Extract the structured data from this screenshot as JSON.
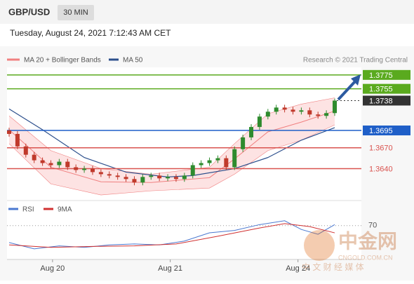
{
  "chart_data": {
    "type": "candlestick",
    "symbol": "GBP/USD",
    "timeframe": "30 MIN",
    "datetime": "Tuesday, August 24, 2021 7:12:43 AM CET",
    "copyright": "Research © 2021 Trading Central",
    "watermark": {
      "logo": "中金网",
      "site": "CNGOLD.COM.CN",
      "tagline": "中 文 财 经 媒 体"
    },
    "ylim": [
      1.3595,
      1.379
    ],
    "xlim": [
      -0.5,
      39.5
    ],
    "xticks": [
      {
        "value": 5.2,
        "label": "Aug 20"
      },
      {
        "value": 19.3,
        "label": "Aug 21"
      },
      {
        "value": 34.6,
        "label": "Aug 24"
      }
    ],
    "up_color": "#2e8b2e",
    "down_color": "#c0392b",
    "open": [
      1.3695,
      1.369,
      1.3672,
      1.366,
      1.3652,
      1.3648,
      1.3645,
      1.365,
      1.3642,
      1.3638,
      1.364,
      1.3635,
      1.3632,
      1.363,
      1.3628,
      1.3625,
      1.362,
      1.3628,
      1.363,
      1.3626,
      1.3628,
      1.3625,
      1.363,
      1.3645,
      1.3648,
      1.3652,
      1.3655,
      1.3642,
      1.3668,
      1.3685,
      1.37,
      1.3715,
      1.3722,
      1.3728,
      1.3725,
      1.3722,
      1.3724,
      1.3718,
      1.3716,
      1.372
    ],
    "high": [
      1.3699,
      1.3694,
      1.3676,
      1.3664,
      1.3656,
      1.3652,
      1.3654,
      1.3654,
      1.3646,
      1.3644,
      1.3644,
      1.3639,
      1.3636,
      1.3634,
      1.3632,
      1.3629,
      1.3632,
      1.3634,
      1.3634,
      1.3632,
      1.3632,
      1.3634,
      1.3649,
      1.3652,
      1.3656,
      1.3659,
      1.3659,
      1.3672,
      1.3689,
      1.3704,
      1.3719,
      1.3726,
      1.3732,
      1.3732,
      1.3729,
      1.3728,
      1.3728,
      1.3722,
      1.3724,
      1.3741
    ],
    "low": [
      1.3686,
      1.3668,
      1.3656,
      1.3648,
      1.3644,
      1.3641,
      1.3641,
      1.3638,
      1.3634,
      1.3634,
      1.3631,
      1.3628,
      1.3626,
      1.3624,
      1.3621,
      1.3616,
      1.3616,
      1.3624,
      1.3622,
      1.3622,
      1.3621,
      1.3621,
      1.3626,
      1.3641,
      1.3644,
      1.3648,
      1.3638,
      1.3638,
      1.3664,
      1.3681,
      1.3696,
      1.3711,
      1.3718,
      1.3721,
      1.3718,
      1.3718,
      1.3714,
      1.3712,
      1.3712,
      1.3716
    ],
    "close": [
      1.369,
      1.3672,
      1.366,
      1.3652,
      1.3648,
      1.3645,
      1.365,
      1.3642,
      1.3638,
      1.364,
      1.3635,
      1.3632,
      1.363,
      1.3628,
      1.3625,
      1.362,
      1.3628,
      1.363,
      1.3626,
      1.3628,
      1.3625,
      1.363,
      1.3645,
      1.3648,
      1.3652,
      1.3655,
      1.3642,
      1.3668,
      1.3685,
      1.37,
      1.3715,
      1.3722,
      1.3728,
      1.3725,
      1.3722,
      1.3724,
      1.3718,
      1.3716,
      1.372,
      1.3738
    ],
    "bands": {
      "name": "MA 20 + Bollinger Bands",
      "color": "#f08080",
      "fill": "#fde3e3",
      "x": [
        0,
        5,
        11,
        17,
        24,
        27,
        31,
        35,
        39
      ],
      "upper": [
        1.3716,
        1.3666,
        1.364,
        1.3632,
        1.3642,
        1.3676,
        1.3719,
        1.3733,
        1.3742
      ],
      "middle": [
        1.3696,
        1.3642,
        1.3621,
        1.362,
        1.3627,
        1.3654,
        1.3693,
        1.3707,
        1.3723
      ],
      "lower": [
        1.3676,
        1.3618,
        1.3602,
        1.3608,
        1.3612,
        1.3632,
        1.3666,
        1.3681,
        1.3703
      ]
    },
    "ma50": {
      "name": "MA 50",
      "color": "#2c4f8c",
      "x": [
        0,
        4,
        9,
        14,
        19,
        22,
        27,
        31,
        35,
        39
      ],
      "values": [
        1.3726,
        1.3696,
        1.3656,
        1.3635,
        1.3628,
        1.363,
        1.364,
        1.3656,
        1.3681,
        1.3699
      ]
    },
    "levels": [
      {
        "value": 1.3775,
        "label": "1.3775",
        "color": "#5aaa1e",
        "line": "solid",
        "box": true
      },
      {
        "value": 1.3755,
        "label": "1.3755",
        "color": "#5aaa1e",
        "line": "solid",
        "box": true
      },
      {
        "value": 1.3738,
        "label": "1.3738",
        "color": "#333333",
        "line": "dotted",
        "box": true
      },
      {
        "value": 1.3695,
        "label": "1.3695",
        "color": "#1f5fc8",
        "line": "solid",
        "box": true
      },
      {
        "value": 1.367,
        "label": "1.3670",
        "color": "#d9534f",
        "line": "solid",
        "box": false
      },
      {
        "value": 1.364,
        "label": "1.3640",
        "color": "#d9534f",
        "line": "solid",
        "box": false
      }
    ],
    "rsi_panel": {
      "ylim": [
        0,
        100
      ],
      "yticks": [
        70
      ],
      "series": [
        {
          "name": "RSI",
          "color": "#4a78d0",
          "x": [
            0,
            3,
            6,
            9,
            12,
            15,
            18,
            21,
            24,
            27,
            30,
            33,
            35,
            37,
            39
          ],
          "values": [
            35,
            22,
            28,
            25,
            30,
            32,
            30,
            38,
            55,
            60,
            72,
            80,
            62,
            52,
            72
          ]
        },
        {
          "name": "9MA",
          "color": "#d03030",
          "x": [
            0,
            5,
            10,
            15,
            20,
            25,
            30,
            33,
            36,
            39
          ],
          "values": [
            30,
            25,
            27,
            28,
            32,
            48,
            65,
            74,
            68,
            55
          ]
        }
      ]
    }
  }
}
